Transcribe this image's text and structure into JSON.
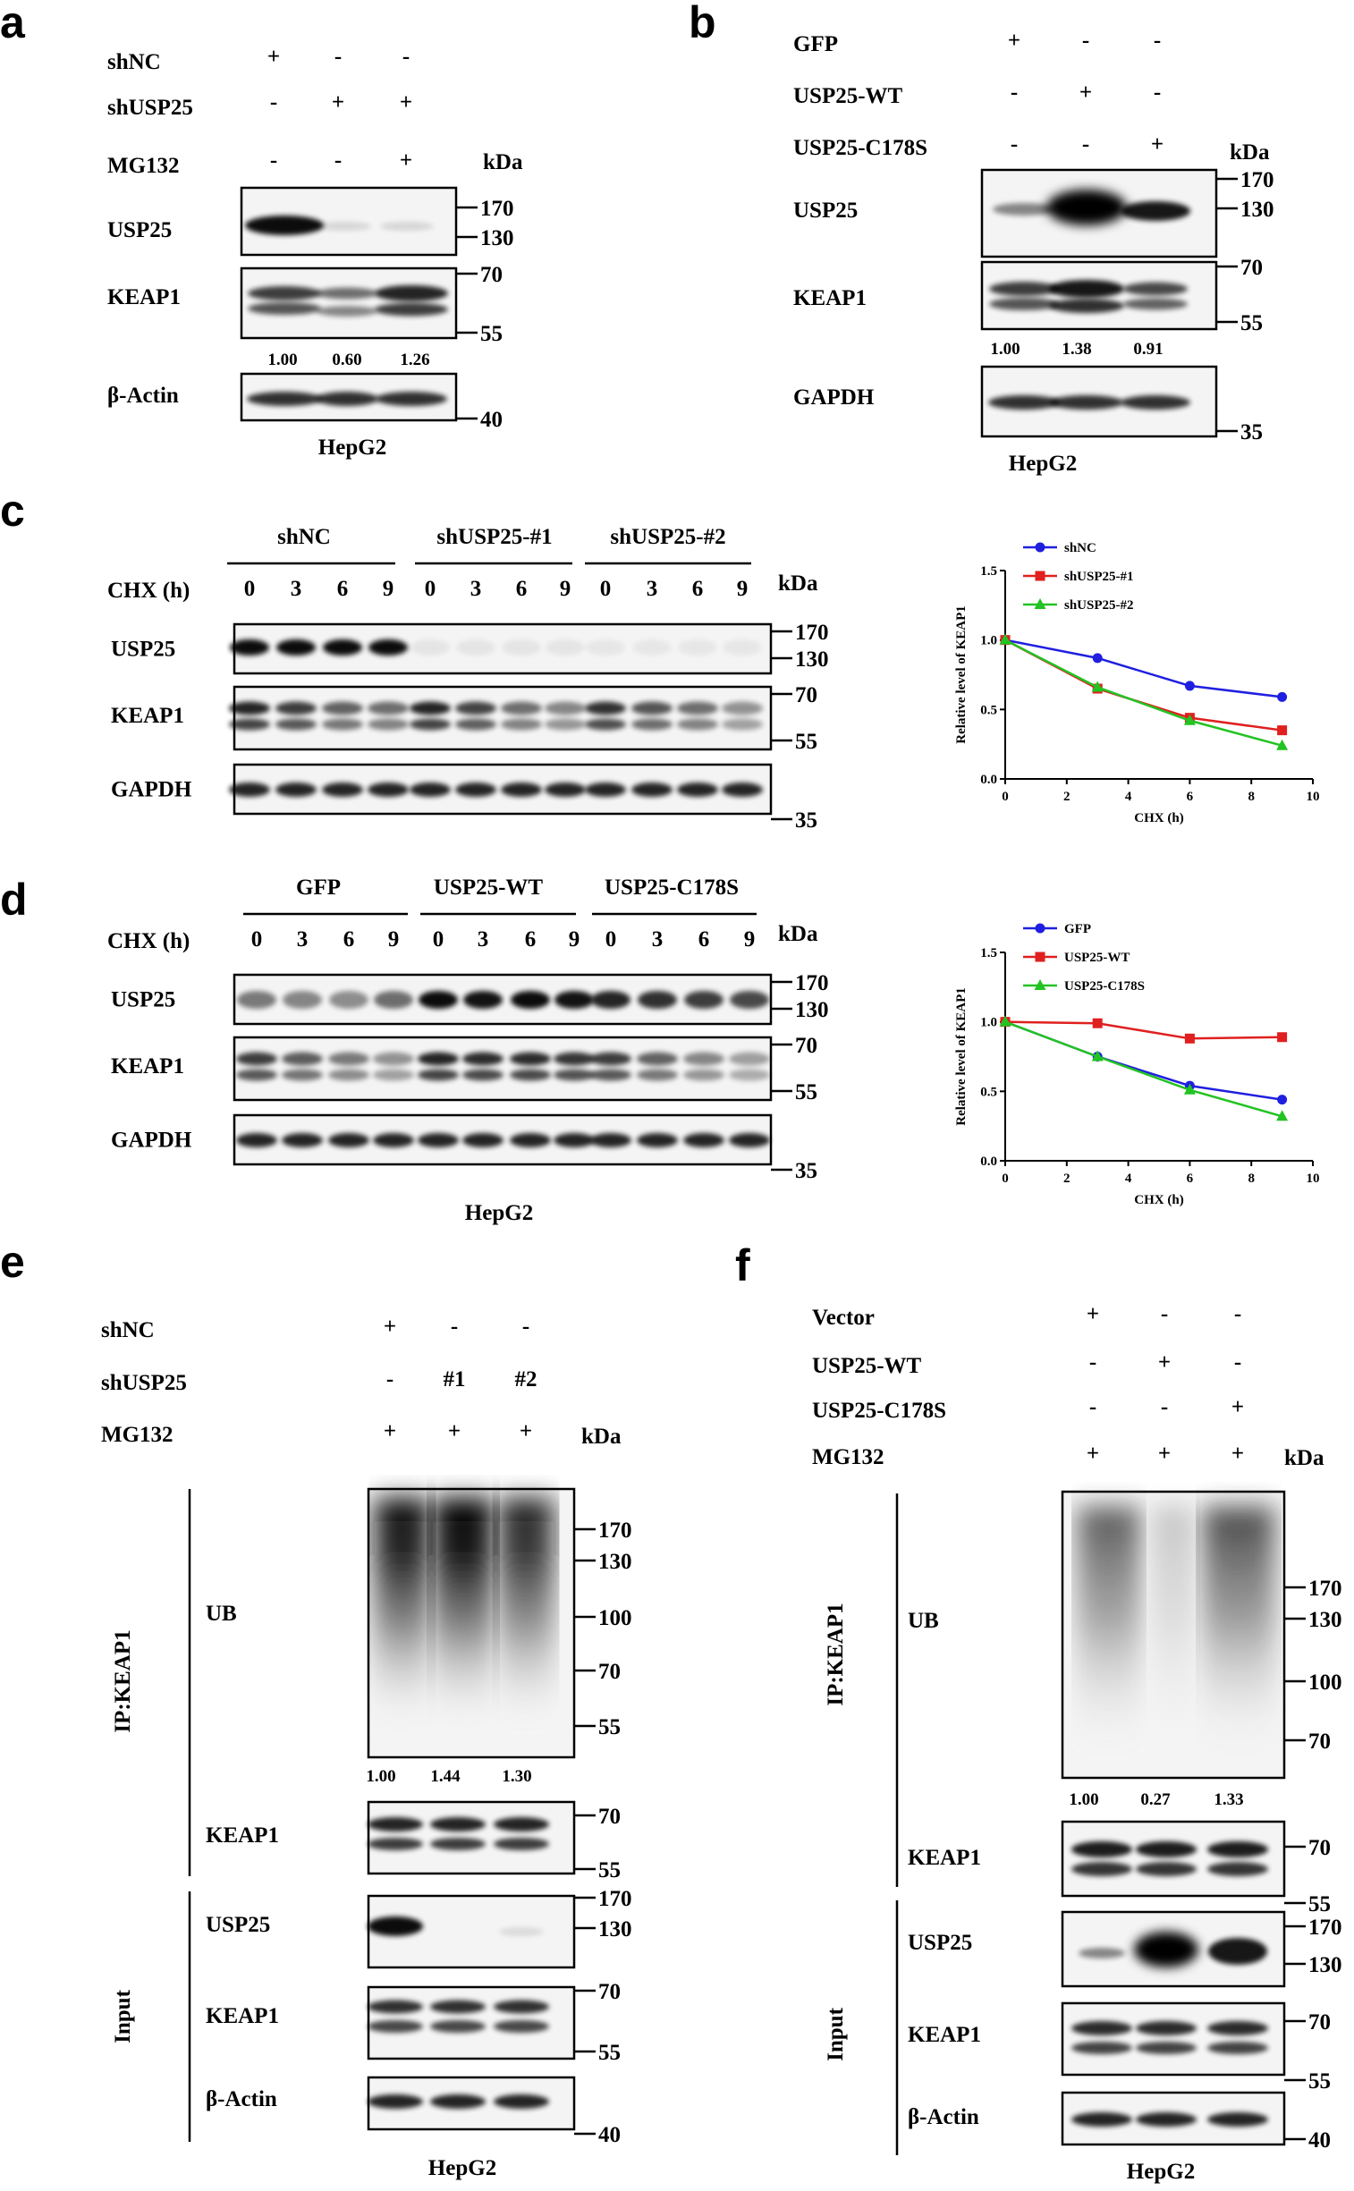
{
  "panels": {
    "a": {
      "letter": "a",
      "rows": [
        {
          "label": "shNC",
          "signs": [
            "+",
            "-",
            "-"
          ]
        },
        {
          "label": "shUSP25",
          "signs": [
            "-",
            "+",
            "+"
          ]
        },
        {
          "label": "MG132",
          "signs": [
            "-",
            "-",
            "+"
          ]
        }
      ],
      "kda": "kDa",
      "blots": [
        {
          "label": "USP25",
          "markers": [
            "170",
            "130"
          ]
        },
        {
          "label": "KEAP1",
          "markers": [
            "70",
            "55"
          ]
        },
        {
          "label": "β-Actin",
          "markers": [
            "40"
          ]
        }
      ],
      "quant": [
        "1.00",
        "0.60",
        "1.26"
      ],
      "cell": "HepG2"
    },
    "b": {
      "letter": "b",
      "rows": [
        {
          "label": "GFP",
          "signs": [
            "+",
            "-",
            "-"
          ]
        },
        {
          "label": "USP25-WT",
          "signs": [
            "-",
            "+",
            "-"
          ]
        },
        {
          "label": "USP25-C178S",
          "signs": [
            "-",
            "-",
            "+"
          ]
        }
      ],
      "kda": "kDa",
      "blots": [
        {
          "label": "USP25",
          "markers": [
            "170",
            "130"
          ]
        },
        {
          "label": "KEAP1",
          "markers": [
            "70",
            "55"
          ]
        },
        {
          "label": "GAPDH",
          "markers": [
            "35"
          ]
        }
      ],
      "quant": [
        "1.00",
        "1.38",
        "0.91"
      ],
      "cell": "HepG2"
    },
    "c": {
      "letter": "c",
      "groups": [
        "shNC",
        "shUSP25-#1",
        "shUSP25-#2"
      ],
      "time_label": "CHX (h)",
      "times": [
        "0",
        "3",
        "6",
        "9",
        "0",
        "3",
        "6",
        "9",
        "0",
        "3",
        "6",
        "9"
      ],
      "kda": "kDa",
      "blots": [
        {
          "label": "USP25",
          "markers": [
            "170",
            "130"
          ]
        },
        {
          "label": "KEAP1",
          "markers": [
            "70",
            "55"
          ]
        },
        {
          "label": "GAPDH",
          "markers": [
            "35"
          ]
        }
      ]
    },
    "d": {
      "letter": "d",
      "groups": [
        "GFP",
        "USP25-WT",
        "USP25-C178S"
      ],
      "time_label": "CHX (h)",
      "times": [
        "0",
        "3",
        "6",
        "9",
        "0",
        "3",
        "6",
        "9",
        "0",
        "3",
        "6",
        "9"
      ],
      "kda": "kDa",
      "blots": [
        {
          "label": "USP25",
          "markers": [
            "170",
            "130"
          ]
        },
        {
          "label": "KEAP1",
          "markers": [
            "70",
            "55"
          ]
        },
        {
          "label": "GAPDH",
          "markers": [
            "35"
          ]
        }
      ],
      "cell": "HepG2"
    },
    "e": {
      "letter": "e",
      "rows": [
        {
          "label": "shNC",
          "signs": [
            "+",
            "-",
            "-"
          ]
        },
        {
          "label": "shUSP25",
          "signs": [
            "-",
            "#1",
            "#2"
          ]
        },
        {
          "label": "MG132",
          "signs": [
            "+",
            "+",
            "+"
          ]
        }
      ],
      "kda": "kDa",
      "ip_label": "IP:KEAP1",
      "input_label": "Input",
      "blots": [
        {
          "label": "UB",
          "markers": [
            "170",
            "130",
            "100",
            "70",
            "55"
          ]
        },
        {
          "label": "KEAP1",
          "markers": [
            "70",
            "55"
          ]
        },
        {
          "label": "USP25",
          "markers": [
            "170",
            "130"
          ]
        },
        {
          "label": "KEAP1",
          "markers": [
            "70",
            "55"
          ]
        },
        {
          "label": "β-Actin",
          "markers": [
            "40"
          ]
        }
      ],
      "quant": [
        "1.00",
        "1.44",
        "1.30"
      ],
      "cell": "HepG2"
    },
    "f": {
      "letter": "f",
      "rows": [
        {
          "label": "Vector",
          "signs": [
            "+",
            "-",
            "-"
          ]
        },
        {
          "label": "USP25-WT",
          "signs": [
            "-",
            "+",
            "-"
          ]
        },
        {
          "label": "USP25-C178S",
          "signs": [
            "-",
            "-",
            "+"
          ]
        },
        {
          "label": "MG132",
          "signs": [
            "+",
            "+",
            "+"
          ]
        }
      ],
      "kda": "kDa",
      "ip_label": "IP:KEAP1",
      "input_label": "Input",
      "blots": [
        {
          "label": "UB",
          "markers": [
            "170",
            "130",
            "100",
            "70"
          ]
        },
        {
          "label": "KEAP1",
          "markers": [
            "70",
            "55"
          ]
        },
        {
          "label": "USP25",
          "markers": [
            "170",
            "130"
          ]
        },
        {
          "label": "KEAP1",
          "markers": [
            "70",
            "55"
          ]
        },
        {
          "label": "β-Actin",
          "markers": [
            "40"
          ]
        }
      ],
      "quant": [
        "1.00",
        "0.27",
        "1.33"
      ],
      "cell": "HepG2"
    }
  },
  "chart_data": [
    {
      "type": "line",
      "panel": "c",
      "xlabel": "CHX (h)",
      "ylabel": "Relative level of KEAP1",
      "xlim": [
        0,
        10
      ],
      "ylim": [
        0.0,
        1.5
      ],
      "xticks": [
        "0",
        "2",
        "4",
        "6",
        "8",
        "10"
      ],
      "yticks": [
        "0.0",
        "0.5",
        "1.0",
        "1.5"
      ],
      "legend_position": "top-left",
      "x": [
        0,
        3,
        6,
        9
      ],
      "series": [
        {
          "name": "shNC",
          "color": "#1f1fe0",
          "marker": "circle",
          "values": [
            1.0,
            0.87,
            0.67,
            0.59
          ]
        },
        {
          "name": "shUSP25-#1",
          "color": "#e01f1f",
          "marker": "square",
          "values": [
            1.0,
            0.65,
            0.44,
            0.35
          ]
        },
        {
          "name": "shUSP25-#2",
          "color": "#22c322",
          "marker": "triangle",
          "values": [
            1.0,
            0.66,
            0.42,
            0.24
          ]
        }
      ]
    },
    {
      "type": "line",
      "panel": "d",
      "xlabel": "CHX (h)",
      "ylabel": "Relative level of KEAP1",
      "xlim": [
        0,
        10
      ],
      "ylim": [
        0.0,
        1.5
      ],
      "xticks": [
        "0",
        "2",
        "4",
        "6",
        "8",
        "10"
      ],
      "yticks": [
        "0.0",
        "0.5",
        "1.0",
        "1.5"
      ],
      "legend_position": "top-left",
      "x": [
        0,
        3,
        6,
        9
      ],
      "series": [
        {
          "name": "GFP",
          "color": "#1f1fe0",
          "marker": "circle",
          "values": [
            1.0,
            0.75,
            0.54,
            0.44
          ]
        },
        {
          "name": "USP25-WT",
          "color": "#e01f1f",
          "marker": "square",
          "values": [
            1.0,
            0.99,
            0.88,
            0.89
          ]
        },
        {
          "name": "USP25-C178S",
          "color": "#22c322",
          "marker": "triangle",
          "values": [
            1.0,
            0.75,
            0.51,
            0.32
          ]
        }
      ]
    }
  ]
}
